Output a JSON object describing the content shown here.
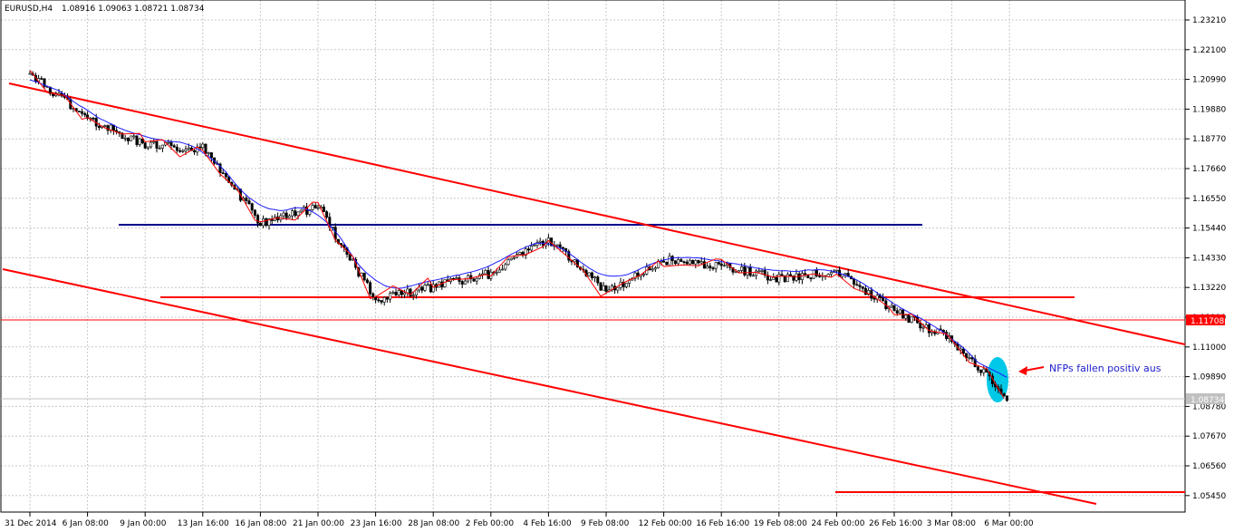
{
  "window": {
    "symbol_timeframe": "EURUSD,H4",
    "ohlc": "1.08916 1.09063 1.08721 1.08734"
  },
  "price_axis": {
    "labels": [
      "1.23210",
      "1.22100",
      "1.20990",
      "1.19880",
      "1.18770",
      "1.17660",
      "1.16550",
      "1.15440",
      "1.14330",
      "1.13220",
      "1.12110",
      "1.11000",
      "1.09890",
      "1.08780",
      "1.07670",
      "1.06560",
      "1.05450"
    ],
    "badge_red": "1.11708",
    "badge_gray": "1.08734"
  },
  "time_axis": {
    "labels": [
      "31 Dec 2014",
      "6 Jan 08:00",
      "9 Jan 00:00",
      "13 Jan 16:00",
      "16 Jan 08:00",
      "21 Jan 00:00",
      "23 Jan 16:00",
      "28 Jan 08:00",
      "2 Feb 00:00",
      "4 Feb 16:00",
      "9 Feb 08:00",
      "12 Feb 00:00",
      "16 Feb 16:00",
      "19 Feb 08:00",
      "24 Feb 00:00",
      "26 Feb 16:00",
      "3 Mar 08:00",
      "6 Mar 00:00"
    ]
  },
  "annotation": {
    "text": "NFPs fallen positiv aus"
  },
  "colors": {
    "bull_candle": "#ffffff",
    "bear_candle": "#000000",
    "zigzag": "#ff0000",
    "moving_average": "#1c1cff",
    "trendline": "#ff0000",
    "resistance": "#00008b",
    "grid": "#c8c8c8",
    "highlight": "#00c8e6"
  },
  "chart_data": {
    "type": "candlestick",
    "title": "EURUSD,H4",
    "ylim": [
      1.0455,
      1.2376
    ],
    "close_path": [
      {
        "t": "31 Dec 2014",
        "price": 1.21
      },
      {
        "t": "6 Jan 08:00",
        "price": 1.193
      },
      {
        "t": "9 Jan 00:00",
        "price": 1.183
      },
      {
        "t": "13 Jan 16:00",
        "price": 1.182
      },
      {
        "t": "16 Jan 08:00",
        "price": 1.154
      },
      {
        "t": "21 Jan 00:00",
        "price": 1.16
      },
      {
        "t": "23 Jan 16:00",
        "price": 1.125
      },
      {
        "t": "28 Jan 08:00",
        "price": 1.13
      },
      {
        "t": "2 Feb 00:00",
        "price": 1.135
      },
      {
        "t": "4 Feb 16:00",
        "price": 1.148
      },
      {
        "t": "9 Feb 08:00",
        "price": 1.128
      },
      {
        "t": "12 Feb 00:00",
        "price": 1.14
      },
      {
        "t": "16 Feb 16:00",
        "price": 1.138
      },
      {
        "t": "19 Feb 08:00",
        "price": 1.133
      },
      {
        "t": "24 Feb 00:00",
        "price": 1.136
      },
      {
        "t": "26 Feb 16:00",
        "price": 1.121
      },
      {
        "t": "3 Mar 08:00",
        "price": 1.11
      },
      {
        "t": "6 Mar 00:00",
        "price": 1.0873
      }
    ],
    "horizontal_levels": [
      1.1544,
      1.1263,
      1.0533
    ],
    "trend_channel": {
      "upper": [
        {
          "t": "31 Dec 2014",
          "price": 1.21
        },
        {
          "t": "end",
          "price": 1.109
        }
      ],
      "lower": [
        {
          "t": "31 Dec 2014",
          "price": 1.137
        },
        {
          "t": "end",
          "price": 1.049
        }
      ]
    }
  }
}
